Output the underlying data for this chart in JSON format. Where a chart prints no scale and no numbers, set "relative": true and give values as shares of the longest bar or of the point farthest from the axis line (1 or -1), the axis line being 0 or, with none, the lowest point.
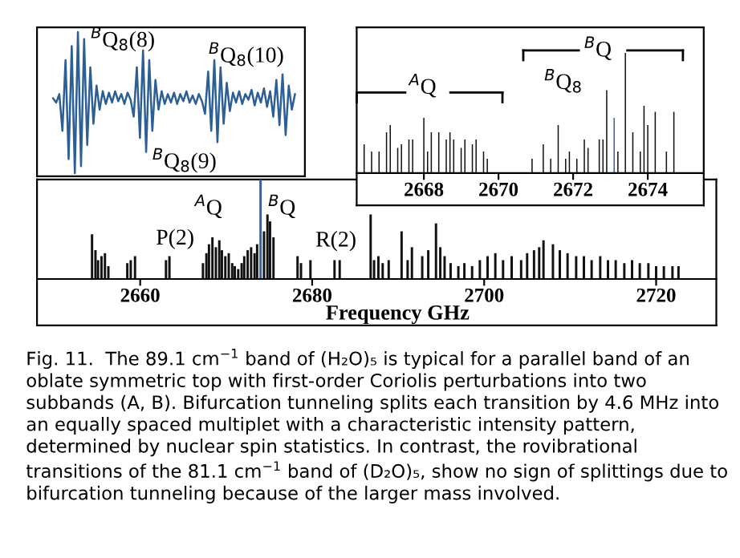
{
  "chart_data": [
    {
      "type": "line",
      "relative": true,
      "tick_labels": false,
      "categories": [
        null,
        null,
        null,
        null,
        null,
        null,
        null,
        null,
        null,
        null,
        null,
        null,
        null,
        null,
        null,
        null,
        null,
        null,
        null,
        null,
        null,
        null,
        null,
        null,
        null,
        null,
        null,
        null,
        null,
        null,
        null,
        null,
        null,
        null,
        null,
        null,
        null,
        null,
        null,
        null,
        null,
        null,
        null,
        null,
        null,
        null,
        null,
        null,
        null,
        null,
        null,
        null,
        null,
        null,
        null,
        null,
        null,
        null,
        null,
        null,
        null,
        null,
        null,
        null,
        null,
        null,
        null,
        null,
        null,
        null,
        null,
        null,
        null,
        null,
        null,
        null,
        null,
        null,
        null
      ],
      "series": [
        {
          "color": "#2b5f95",
          "values": [
            0.53,
            0.5,
            0.56,
            0.3,
            0.8,
            0.1,
            0.9,
            0.0,
            1.0,
            0.05,
            0.95,
            0.2,
            0.75,
            0.35,
            0.62,
            0.45,
            0.58,
            0.49,
            0.57,
            0.5,
            0.58,
            0.51,
            0.56,
            0.49,
            0.57,
            0.52,
            0.4,
            0.75,
            0.25,
            0.87,
            0.15,
            0.8,
            0.3,
            0.66,
            0.45,
            0.58,
            0.49,
            0.56,
            0.5,
            0.57,
            0.49,
            0.56,
            0.51,
            0.58,
            0.5,
            0.55,
            0.49,
            0.56,
            0.51,
            0.42,
            0.72,
            0.3,
            0.8,
            0.22,
            0.75,
            0.35,
            0.64,
            0.44,
            0.57,
            0.5,
            0.58,
            0.49,
            0.56,
            0.52,
            0.59,
            0.48,
            0.57,
            0.5,
            0.6,
            0.47,
            0.58,
            0.4,
            0.66,
            0.34,
            0.7,
            0.27,
            0.62,
            0.45,
            0.56
          ]
        }
      ],
      "annotations": [
        "$^{B}$Q$_{8}$(8)",
        "$^{B}$Q$_{8}$(9)",
        "$^{B}$Q$_{8}$(10)"
      ]
    },
    {
      "type": "bar",
      "relative": true,
      "tick_labels": "x",
      "xlim": [
        2666.2,
        2675.5
      ],
      "xticks": [
        2668,
        2670,
        2672,
        2674
      ],
      "series": [
        {
          "color": "#111111",
          "x": [
            2666.4,
            2666.6,
            2666.8,
            2667.0,
            2667.1,
            2667.3,
            2667.4,
            2667.6,
            2667.7,
            2668.0,
            2668.1,
            2668.2,
            2668.4,
            2668.6,
            2668.7,
            2668.8,
            2669.0,
            2669.1,
            2669.3,
            2669.4,
            2669.6,
            2669.7,
            2670.9,
            2671.2,
            2671.4,
            2671.6,
            2671.8,
            2671.9,
            2672.1,
            2672.3,
            2672.4,
            2672.7,
            2672.8,
            2672.9,
            2673.2,
            2673.4,
            2673.6,
            2673.8,
            2673.9,
            2674.0,
            2674.2,
            2674.5,
            2674.7
          ],
          "values": [
            0.24,
            0.18,
            0.18,
            0.34,
            0.4,
            0.21,
            0.24,
            0.28,
            0.28,
            0.46,
            0.18,
            0.34,
            0.34,
            0.28,
            0.34,
            0.28,
            0.21,
            0.28,
            0.24,
            0.28,
            0.18,
            0.12,
            0.12,
            0.24,
            0.12,
            0.4,
            0.12,
            0.18,
            0.12,
            0.28,
            0.21,
            0.28,
            0.28,
            0.69,
            0.18,
            1.0,
            0.34,
            0.18,
            0.56,
            0.4,
            0.51,
            0.18,
            0.51
          ]
        },
        {
          "color": "#2f63a6",
          "x": [
            2673.1
          ],
          "values": [
            0.46
          ]
        }
      ],
      "annotations": [
        "$^{A}$Q",
        "$^{B}$Q",
        "$^{B}$Q$_{8}$"
      ]
    },
    {
      "type": "bar",
      "relative": true,
      "tick_labels": "x",
      "xlabel": "Frequency GHz",
      "xlim": [
        2648,
        2727
      ],
      "xticks": [
        2660,
        2680,
        2700,
        2720
      ],
      "series": [
        {
          "color": "#111111",
          "x": [
            2654.4,
            2654.8,
            2655.1,
            2655.5,
            2655.9,
            2656.3,
            2658.5,
            2658.9,
            2659.4,
            2663.0,
            2663.4,
            2667.3,
            2667.7,
            2668.0,
            2668.4,
            2668.8,
            2669.2,
            2669.5,
            2669.9,
            2670.3,
            2670.7,
            2671.0,
            2671.4,
            2671.8,
            2672.1,
            2672.5,
            2672.9,
            2673.3,
            2673.6,
            2674.4,
            2674.8,
            2675.1,
            2675.5,
            2678.3,
            2678.7,
            2679.8,
            2682.6,
            2683.2,
            2686.8,
            2687.2,
            2687.7,
            2688.2,
            2688.9,
            2690.4,
            2691.1,
            2691.6,
            2692.8,
            2693.5,
            2694.4,
            2694.9,
            2695.4,
            2696.1,
            2697.0,
            2697.7,
            2698.6,
            2699.5,
            2700.4,
            2701.3,
            2702.2,
            2703.2,
            2704.3,
            2705.0,
            2705.8,
            2706.4,
            2706.9,
            2708.0,
            2708.8,
            2709.7,
            2710.7,
            2711.6,
            2712.5,
            2713.5,
            2714.4,
            2715.3,
            2716.3,
            2717.2,
            2718.1,
            2719.1,
            2720.0,
            2720.9,
            2721.9,
            2722.6
          ],
          "values": [
            0.45,
            0.29,
            0.19,
            0.23,
            0.26,
            0.13,
            0.16,
            0.19,
            0.23,
            0.19,
            0.23,
            0.16,
            0.26,
            0.35,
            0.42,
            0.32,
            0.39,
            0.29,
            0.23,
            0.26,
            0.16,
            0.13,
            0.1,
            0.16,
            0.23,
            0.29,
            0.32,
            0.26,
            0.35,
            0.48,
            0.65,
            0.58,
            0.42,
            0.23,
            0.16,
            0.19,
            0.19,
            0.19,
            0.65,
            0.19,
            0.23,
            0.16,
            0.19,
            0.48,
            0.19,
            0.32,
            0.23,
            0.29,
            0.56,
            0.32,
            0.23,
            0.16,
            0.13,
            0.16,
            0.13,
            0.19,
            0.23,
            0.26,
            0.19,
            0.23,
            0.19,
            0.26,
            0.29,
            0.32,
            0.39,
            0.35,
            0.29,
            0.26,
            0.23,
            0.23,
            0.19,
            0.23,
            0.19,
            0.19,
            0.16,
            0.19,
            0.16,
            0.16,
            0.13,
            0.13,
            0.13,
            0.13
          ]
        },
        {
          "color": "#2f63a6",
          "x": [
            2674.0
          ],
          "values": [
            1
          ]
        }
      ],
      "annotations": [
        "P(2)",
        "$^{A}$Q",
        "$^{B}$Q",
        "R(2)",
        "Fig. 11.  The 89.1 cm$^{−1}$ band of (H₂O)₅ is typical for a parallel band of an oblate symmetric top with first-order Coriolis perturbations into two subbands (A, B). Bifurcation tunneling splits each transition by 4.6 MHz into an equally spaced multiplet with a characteristic intensity pattern, determined by nuclear spin statistics. In contrast, the rovibrational transitions of the 81.1 cm$^{−1}$ band of (D₂O)₅, show no sign of splittings due to bifurcation tunneling because of the larger mass involved."
      ]
    }
  ]
}
